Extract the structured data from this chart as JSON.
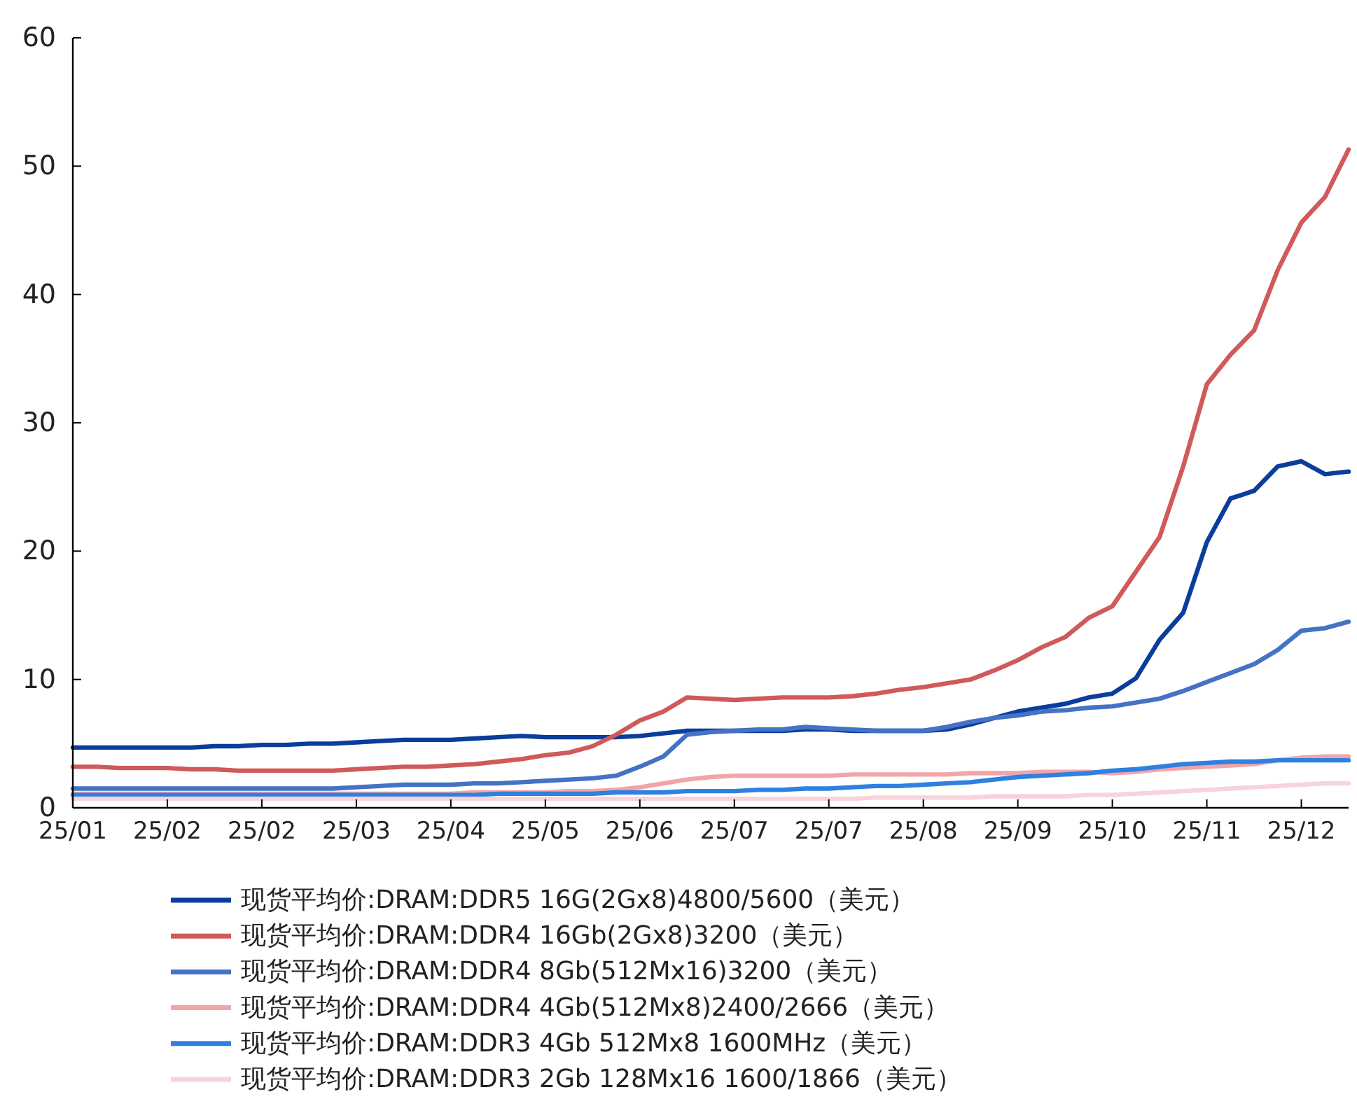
{
  "chart_data": {
    "type": "line",
    "categories": [
      "25/01",
      null,
      null,
      null,
      "25/02",
      null,
      null,
      null,
      "25/02",
      null,
      null,
      null,
      "25/03",
      null,
      null,
      null,
      "25/04",
      null,
      null,
      null,
      "25/05",
      null,
      null,
      null,
      "25/06",
      null,
      null,
      null,
      "25/07",
      null,
      null,
      null,
      "25/07",
      null,
      null,
      null,
      "25/08",
      null,
      null,
      null,
      "25/09",
      null,
      null,
      null,
      "25/10",
      null,
      null,
      null,
      "25/11",
      null,
      null,
      null,
      "25/12",
      null,
      null
    ],
    "ylim": [
      0,
      60
    ],
    "yticks": [
      0,
      10,
      20,
      30,
      40,
      50,
      60
    ],
    "grid": false,
    "legend": "bottom",
    "marker": "none",
    "line_style": "solid",
    "series": [
      {
        "name": "现货平均价:DRAM:DDR5 16G(2Gx8)4800/5600（美元）",
        "color": "#0a3d9c",
        "values": [
          4.7,
          4.7,
          4.7,
          4.7,
          4.7,
          4.7,
          4.8,
          4.8,
          4.9,
          4.9,
          5.0,
          5.0,
          5.1,
          5.2,
          5.3,
          5.3,
          5.3,
          5.4,
          5.5,
          5.6,
          5.5,
          5.5,
          5.5,
          5.5,
          5.6,
          5.8,
          6.0,
          6.0,
          6.0,
          6.0,
          6.0,
          6.1,
          6.1,
          6.0,
          6.0,
          6.0,
          6.0,
          6.1,
          6.5,
          7.0,
          7.5,
          7.8,
          8.1,
          8.6,
          8.9,
          10.1,
          13.1,
          15.2,
          20.7,
          24.1,
          24.7,
          26.6,
          27.0,
          26.0,
          26.2
        ]
      },
      {
        "name": "现货平均价:DRAM:DDR4 16Gb(2Gx8)3200（美元）",
        "color": "#d05a5a",
        "values": [
          3.2,
          3.2,
          3.1,
          3.1,
          3.1,
          3.0,
          3.0,
          2.9,
          2.9,
          2.9,
          2.9,
          2.9,
          3.0,
          3.1,
          3.2,
          3.2,
          3.3,
          3.4,
          3.6,
          3.8,
          4.1,
          4.3,
          4.8,
          5.7,
          6.8,
          7.5,
          8.6,
          8.5,
          8.4,
          8.5,
          8.6,
          8.6,
          8.6,
          8.7,
          8.9,
          9.2,
          9.4,
          9.7,
          10.0,
          10.7,
          11.5,
          12.5,
          13.3,
          14.8,
          15.7,
          18.4,
          21.1,
          26.6,
          33.0,
          35.3,
          37.2,
          41.9,
          45.6,
          47.6,
          51.3
        ]
      },
      {
        "name": "现货平均价:DRAM:DDR4 8Gb(512Mx16)3200（美元）",
        "color": "#4472c4",
        "values": [
          1.5,
          1.5,
          1.5,
          1.5,
          1.5,
          1.5,
          1.5,
          1.5,
          1.5,
          1.5,
          1.5,
          1.5,
          1.6,
          1.7,
          1.8,
          1.8,
          1.8,
          1.9,
          1.9,
          2.0,
          2.1,
          2.2,
          2.3,
          2.5,
          3.2,
          4.0,
          5.7,
          5.9,
          6.0,
          6.1,
          6.1,
          6.3,
          6.2,
          6.1,
          6.0,
          6.0,
          6.0,
          6.3,
          6.7,
          7.0,
          7.2,
          7.5,
          7.6,
          7.8,
          7.9,
          8.2,
          8.5,
          9.1,
          9.8,
          10.5,
          11.2,
          12.3,
          13.8,
          14.0,
          14.5
        ]
      },
      {
        "name": "现货平均价:DRAM:DDR4 4Gb(512Mx8)2400/2666（美元）",
        "color": "#f2a5a8",
        "values": [
          1.1,
          1.1,
          1.1,
          1.1,
          1.1,
          1.1,
          1.1,
          1.1,
          1.1,
          1.1,
          1.1,
          1.1,
          1.1,
          1.1,
          1.1,
          1.1,
          1.1,
          1.2,
          1.2,
          1.2,
          1.2,
          1.3,
          1.3,
          1.4,
          1.6,
          1.9,
          2.2,
          2.4,
          2.5,
          2.5,
          2.5,
          2.5,
          2.5,
          2.6,
          2.6,
          2.6,
          2.6,
          2.6,
          2.7,
          2.7,
          2.7,
          2.8,
          2.8,
          2.8,
          2.7,
          2.8,
          3.0,
          3.1,
          3.2,
          3.3,
          3.4,
          3.7,
          3.9,
          4.0,
          4.0
        ]
      },
      {
        "name": "现货平均价:DRAM:DDR3 4Gb 512Mx8 1600MHz（美元）",
        "color": "#2f80e0",
        "values": [
          1.0,
          1.0,
          1.0,
          1.0,
          1.0,
          1.0,
          1.0,
          1.0,
          1.0,
          1.0,
          1.0,
          1.0,
          1.0,
          1.0,
          1.0,
          1.0,
          1.0,
          1.0,
          1.1,
          1.1,
          1.1,
          1.1,
          1.1,
          1.2,
          1.2,
          1.2,
          1.3,
          1.3,
          1.3,
          1.4,
          1.4,
          1.5,
          1.5,
          1.6,
          1.7,
          1.7,
          1.8,
          1.9,
          2.0,
          2.2,
          2.4,
          2.5,
          2.6,
          2.7,
          2.9,
          3.0,
          3.2,
          3.4,
          3.5,
          3.6,
          3.6,
          3.7,
          3.7,
          3.7,
          3.7
        ]
      },
      {
        "name": "现货平均价:DRAM:DDR3 2Gb 128Mx16 1600/1866（美元）",
        "color": "#f8d3da",
        "values": [
          0.7,
          0.7,
          0.7,
          0.7,
          0.7,
          0.7,
          0.7,
          0.7,
          0.7,
          0.7,
          0.7,
          0.7,
          0.7,
          0.7,
          0.7,
          0.7,
          0.7,
          0.7,
          0.7,
          0.7,
          0.7,
          0.7,
          0.7,
          0.7,
          0.7,
          0.7,
          0.7,
          0.7,
          0.7,
          0.7,
          0.7,
          0.7,
          0.7,
          0.7,
          0.8,
          0.8,
          0.8,
          0.8,
          0.8,
          0.9,
          0.9,
          0.9,
          0.9,
          1.0,
          1.0,
          1.1,
          1.2,
          1.3,
          1.4,
          1.5,
          1.6,
          1.7,
          1.8,
          1.9,
          1.9
        ]
      }
    ]
  }
}
